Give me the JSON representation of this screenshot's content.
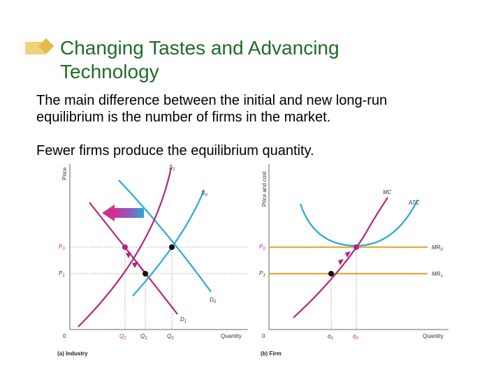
{
  "slide": {
    "title_line1": "Changing Tastes and Advancing",
    "title_line2": "Technology",
    "paragraph1_line1": "The main difference between the initial and new long-run",
    "paragraph1_line2": "equilibrium is the number of firms in the market.",
    "paragraph2": "Fewer firms produce the equilibrium quantity.",
    "colors": {
      "title": "#1f6b28",
      "bullet": "#e6b94a"
    }
  },
  "industry_graph": {
    "y_axis_label": "Price",
    "x_axis_label": "Quantity",
    "origin": "0",
    "caption": "(a) Industry",
    "supply_labels": [
      "S",
      "1",
      "S",
      "0"
    ],
    "demand_labels": [
      "D",
      "0",
      "D",
      "1"
    ],
    "price_labels": [
      "P",
      "0",
      "P",
      "1"
    ],
    "quantity_labels": [
      "Q",
      "2",
      "Q",
      "1",
      "Q",
      "0"
    ],
    "colors": {
      "supply": "#b0267e",
      "demand": "#29a9d6",
      "arrow": "#4a78c8"
    }
  },
  "firm_graph": {
    "y_axis_label": "Price and cost",
    "x_axis_label": "Quantity",
    "origin": "0",
    "caption": "(b) Firm",
    "curve_labels": [
      "MC",
      "ATC"
    ],
    "mr_labels": [
      "MR",
      "0",
      "MR",
      "1"
    ],
    "price_labels": [
      "P",
      "0",
      "P",
      "1"
    ],
    "quantity_labels": [
      "q",
      "1",
      "q",
      "0"
    ],
    "colors": {
      "mc": "#b0267e",
      "atc": "#29a9d6",
      "mr": "#e8a83a"
    }
  }
}
